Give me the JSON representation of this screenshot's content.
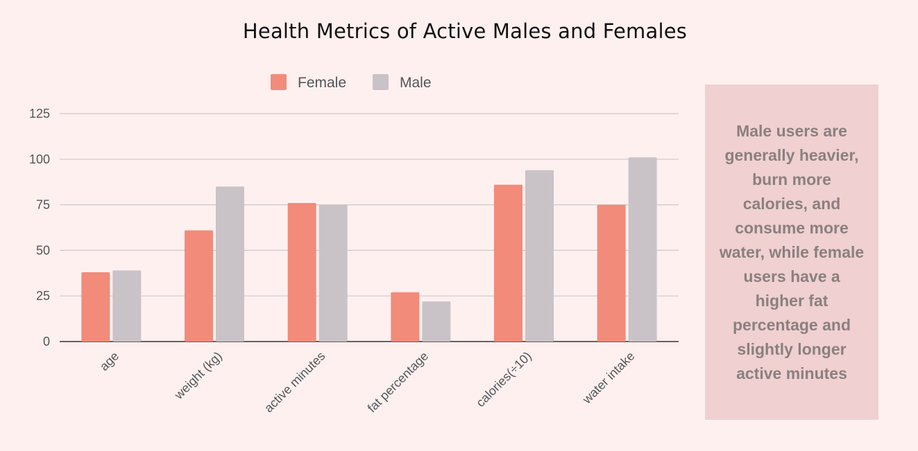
{
  "chart_data": {
    "type": "bar",
    "title": "Health Metrics of Active Males and Females",
    "categories": [
      "age",
      "weight (kg)",
      "active minutes",
      "fat percentage",
      "calories(÷10)",
      "water intake"
    ],
    "series": [
      {
        "name": "Female",
        "color": "#f28b79",
        "values": [
          38,
          61,
          76,
          27,
          86,
          75
        ]
      },
      {
        "name": "Male",
        "color": "#c9c3c8",
        "values": [
          39,
          85,
          75,
          22,
          94,
          101
        ]
      }
    ],
    "yticks": [
      0,
      25,
      50,
      75,
      100,
      125
    ],
    "ylim": [
      0,
      125
    ],
    "grid": true,
    "legend_position": "top-center"
  },
  "note": {
    "text": "Male users are generally heavier, burn more calories, and consume more water, while female users have a higher fat percentage and slightly longer active minutes"
  }
}
